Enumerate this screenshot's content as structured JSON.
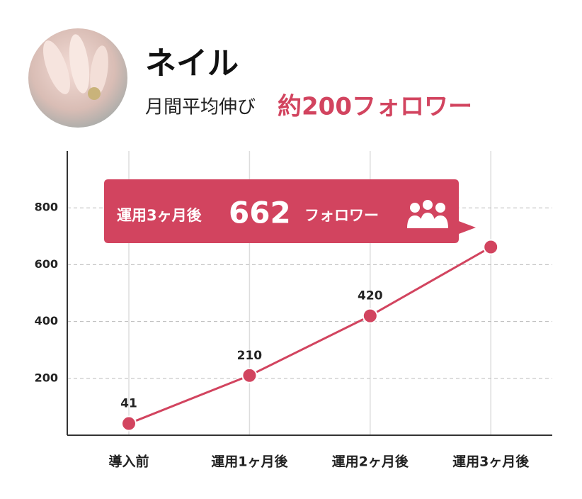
{
  "chart_data": {
    "type": "line",
    "title": "ネイル",
    "subtitle": "月間平均伸び",
    "subtitle_highlight": "約200フォロワー",
    "categories": [
      "導入前",
      "運用1ヶ月後",
      "運用2ヶ月後",
      "運用3ヶ月後"
    ],
    "series": [
      {
        "name": "フォロワー",
        "color": "#d2445f",
        "values": [
          41,
          210,
          420,
          662
        ]
      }
    ],
    "ylim": [
      0,
      1000
    ],
    "yticks": [
      200,
      400,
      600,
      800
    ],
    "grid": true
  }
}
